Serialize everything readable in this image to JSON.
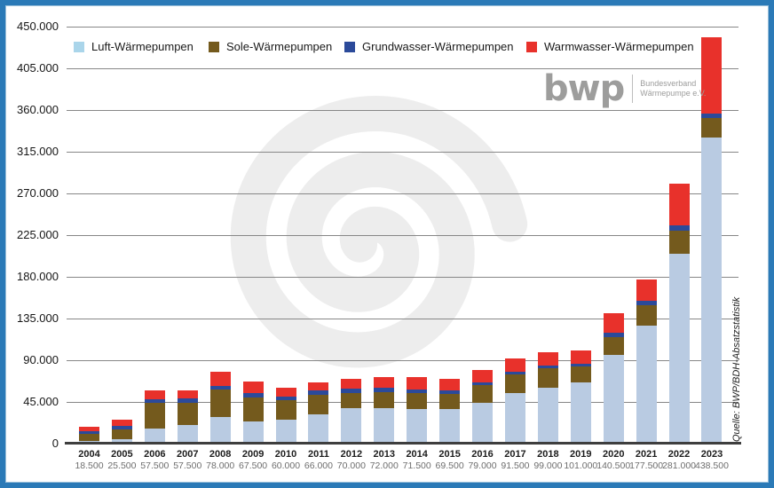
{
  "source_note": "Quelle: BWP/BDH-Absatzstatistik",
  "logo": {
    "text": "bwp",
    "line1": "Bundesverband",
    "line2": "Wärmepumpe e.V."
  },
  "colors": {
    "frame_border": "#2b7ab7",
    "gridline": "#878787",
    "axis_line": "#3e3e3e",
    "watermark": "#ededed",
    "logo_gray": "#9d9d9c"
  },
  "legend": {
    "items": [
      {
        "label": "Luft-Wärmepumpen",
        "color": "#aad5ea"
      },
      {
        "label": "Sole-Wärmepumpen",
        "color": "#745a1d"
      },
      {
        "label": "Grundwasser-Wärmepumpen",
        "color": "#2b4a9a"
      },
      {
        "label": "Warmwasser-Wärmepumpen",
        "color": "#e8312b"
      }
    ]
  },
  "chart_data": {
    "type": "bar",
    "stacked": true,
    "grid": true,
    "legend_position": "top",
    "ylim": [
      0,
      450000
    ],
    "y_ticks": [
      "450.000",
      "405.000",
      "360.000",
      "315.000",
      "270.000",
      "225.000",
      "180.000",
      "135.000",
      "90.000",
      "45.000",
      "0"
    ],
    "categories": [
      "2004",
      "2005",
      "2006",
      "2007",
      "2008",
      "2009",
      "2010",
      "2011",
      "2012",
      "2013",
      "2014",
      "2015",
      "2016",
      "2017",
      "2018",
      "2019",
      "2020",
      "2021",
      "2022",
      "2023"
    ],
    "totals": [
      18500,
      25500,
      57500,
      57500,
      78000,
      67500,
      60000,
      66000,
      70000,
      72000,
      71500,
      69500,
      79000,
      91500,
      99000,
      101000,
      140500,
      177500,
      281000,
      438500
    ],
    "totals_labels": [
      "18.500",
      "25.500",
      "57.500",
      "57.500",
      "78.000",
      "67.500",
      "60.000",
      "66.000",
      "70.000",
      "72.000",
      "71.500",
      "69.500",
      "79.000",
      "91.500",
      "99.000",
      "101.000",
      "140.500",
      "177.500",
      "281.000",
      "438.500"
    ],
    "series": [
      {
        "name": "Luft-Wärmepumpen",
        "color": "#b9cbe2",
        "values": [
          2500,
          4500,
          16500,
          20500,
          29000,
          24000,
          25500,
          31500,
          38000,
          38500,
          37500,
          37000,
          44500,
          54500,
          60500,
          66000,
          96000,
          127000,
          205000,
          330000
        ]
      },
      {
        "name": "Sole-Wärmepumpen",
        "color": "#745a1d",
        "values": [
          8000,
          11000,
          27500,
          24000,
          29000,
          26000,
          21500,
          21500,
          17000,
          17500,
          17000,
          17000,
          19000,
          20000,
          20500,
          17500,
          19000,
          22500,
          25000,
          21500
        ]
      },
      {
        "name": "Grundwasser-Wärmepumpen",
        "color": "#2b4a9a",
        "values": [
          2500,
          3500,
          4000,
          4000,
          4500,
          4500,
          4000,
          4000,
          4500,
          4000,
          3500,
          3000,
          3000,
          3500,
          3000,
          2500,
          5000,
          4500,
          6000,
          4500
        ]
      },
      {
        "name": "Warmwasser-Wärmepumpen",
        "color": "#e8312b",
        "values": [
          5500,
          6500,
          9500,
          9000,
          15500,
          13000,
          9000,
          9000,
          10500,
          12000,
          13500,
          12500,
          12500,
          13500,
          15000,
          15000,
          20500,
          23500,
          45000,
          82500
        ]
      }
    ]
  }
}
